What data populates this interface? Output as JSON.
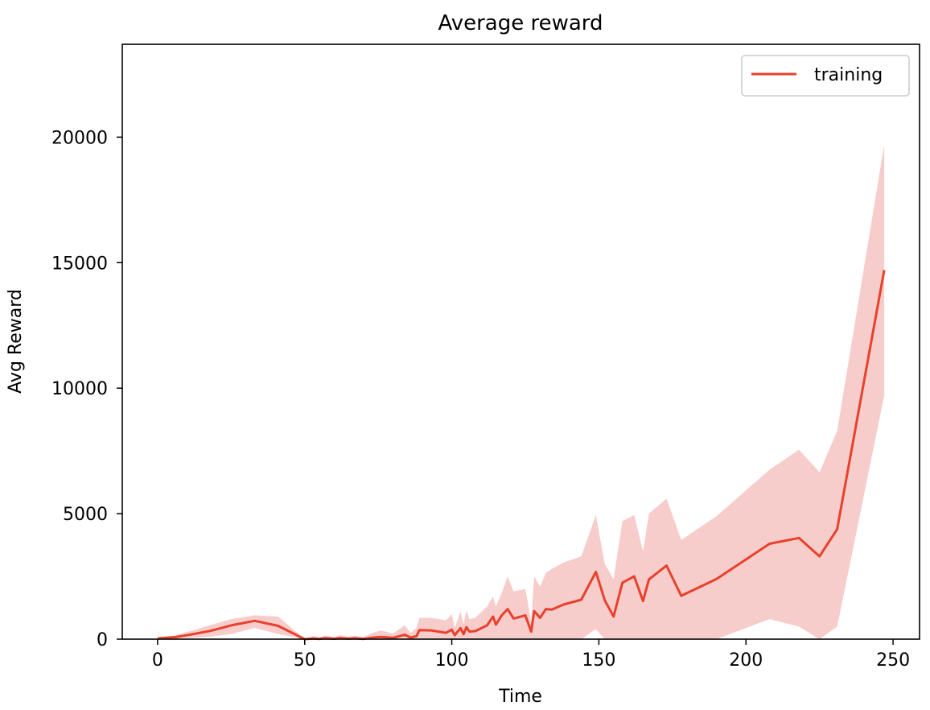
{
  "chart_data": {
    "type": "line",
    "title": "Average reward",
    "xlabel": "Time",
    "ylabel": "Avg Reward",
    "xlim": [
      -12,
      259
    ],
    "ylim": [
      0,
      23700
    ],
    "xticks": [
      0,
      50,
      100,
      150,
      200,
      250
    ],
    "yticks": [
      0,
      5000,
      10000,
      15000,
      20000
    ],
    "xtick_labels": [
      "0",
      "50",
      "100",
      "150",
      "200",
      "250"
    ],
    "ytick_labels": [
      "0",
      "5000",
      "10000",
      "15000",
      "20000"
    ],
    "grid": false,
    "legend_position": "top-right",
    "series": [
      {
        "name": "training",
        "color": "#e8412c",
        "band_color": "#f7cdcc",
        "x": [
          0,
          6,
          12,
          18,
          25,
          33,
          41,
          50,
          53,
          55,
          57,
          60,
          62,
          65,
          67,
          70,
          73,
          76,
          80,
          84,
          86,
          88,
          89,
          93,
          98,
          100,
          101,
          103,
          104,
          105,
          106,
          108,
          112,
          114,
          115,
          117,
          119,
          121,
          125,
          127,
          128,
          130,
          132,
          134,
          138,
          144,
          149,
          152,
          155,
          158,
          162,
          165,
          167,
          173,
          178,
          190,
          208,
          218,
          225,
          231,
          247
        ],
        "y": [
          30,
          80,
          200,
          330,
          550,
          730,
          530,
          0,
          30,
          10,
          40,
          15,
          45,
          20,
          35,
          10,
          60,
          90,
          50,
          180,
          60,
          120,
          360,
          350,
          250,
          380,
          160,
          440,
          200,
          480,
          300,
          320,
          550,
          900,
          580,
          950,
          1200,
          820,
          950,
          300,
          1120,
          850,
          1200,
          1180,
          1380,
          1570,
          2680,
          1550,
          900,
          2250,
          2500,
          1520,
          2380,
          2930,
          1730,
          2400,
          3800,
          4030,
          3300,
          4380,
          14700
        ],
        "lower": [
          0,
          20,
          50,
          100,
          200,
          450,
          200,
          0,
          0,
          0,
          0,
          0,
          0,
          0,
          0,
          0,
          0,
          0,
          0,
          0,
          0,
          0,
          0,
          0,
          0,
          0,
          0,
          0,
          0,
          0,
          0,
          0,
          0,
          0,
          0,
          0,
          0,
          0,
          0,
          0,
          0,
          0,
          0,
          0,
          0,
          0,
          400,
          0,
          0,
          0,
          0,
          0,
          0,
          0,
          0,
          0,
          800,
          500,
          0,
          500,
          9700
        ],
        "upper": [
          70,
          150,
          350,
          560,
          800,
          950,
          900,
          0,
          120,
          60,
          150,
          70,
          160,
          90,
          140,
          80,
          250,
          350,
          220,
          550,
          250,
          450,
          850,
          850,
          750,
          1000,
          450,
          1100,
          600,
          1150,
          800,
          850,
          1300,
          1700,
          1300,
          1850,
          2500,
          1900,
          2000,
          700,
          2500,
          2100,
          2650,
          2800,
          3050,
          3300,
          4950,
          3000,
          2400,
          4700,
          4950,
          3500,
          5000,
          5600,
          3950,
          4900,
          6750,
          7550,
          6650,
          8300,
          19700
        ]
      }
    ]
  }
}
